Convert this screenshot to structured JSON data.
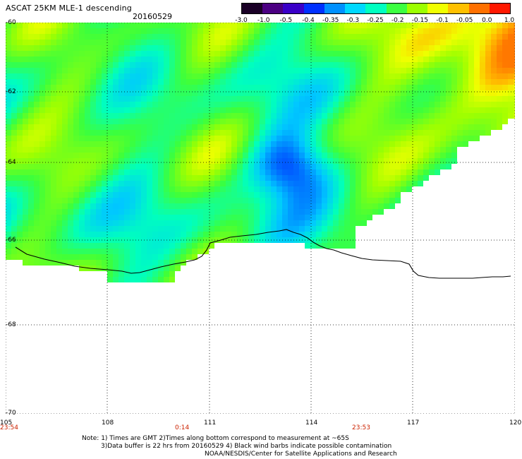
{
  "header": {
    "title": "ASCAT 25KM MLE-1 descending",
    "date": "20160529"
  },
  "colorbar": {
    "labels": [
      "-3.0",
      "-1.0",
      "-0.5",
      "-0.4",
      "-0.35",
      "-0.3",
      "-0.25",
      "-0.2",
      "-0.15",
      "-0.1",
      "-0.05",
      "0.0",
      "1.0"
    ],
    "colors": [
      "#1a0026",
      "#4b0082",
      "#3a00c8",
      "#0030ff",
      "#0090ff",
      "#00d8ff",
      "#00ffc0",
      "#3cff40",
      "#9cff00",
      "#f0ff00",
      "#ffc000",
      "#ff7000",
      "#ff1800"
    ]
  },
  "axes": {
    "lat_labels": [
      "-60",
      "-62",
      "-64",
      "-66",
      "-68",
      "-70"
    ],
    "lon_labels": [
      "105",
      "108",
      "111",
      "114",
      "117",
      "120"
    ],
    "time_labels": [
      "23:54",
      "0:14",
      "23:53"
    ]
  },
  "footer": {
    "note_line1": "Note: 1) Times are GMT 2)Times along bottom correspond to measurement at ~65S",
    "note_line2": "3)Data buffer is 22 hrs from 20160529 4) Black wind barbs indicate possible contamination",
    "credit": "NOAA/NESDIS/Center for Satellite Applications and Research"
  }
}
